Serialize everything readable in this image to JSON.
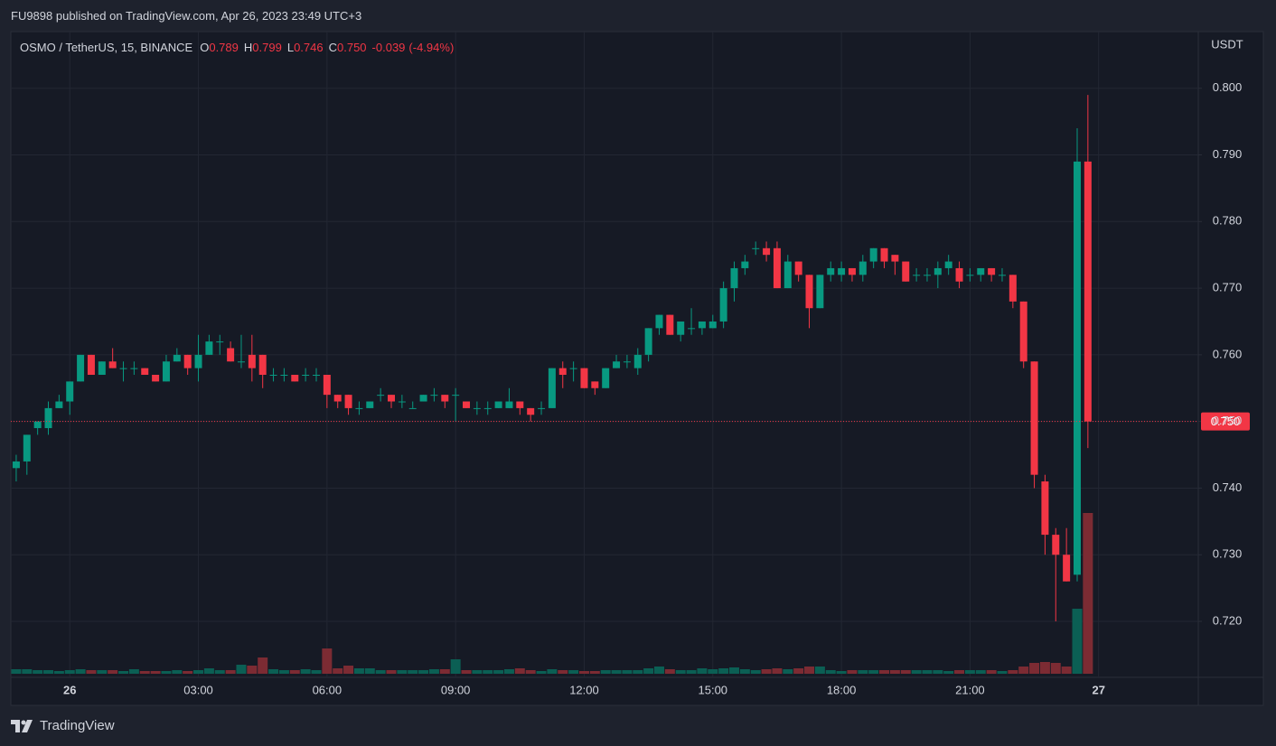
{
  "header": "FU9898 published on TradingView.com, Apr 26, 2023 23:49 UTC+3",
  "footer": "TradingView",
  "chart_data": {
    "type": "candlestick",
    "title": "OSMO / TetherUS, 15, BINANCE",
    "legend_items": [
      {
        "label": "O",
        "value": "0.789"
      },
      {
        "label": "H",
        "value": "0.799"
      },
      {
        "label": "L",
        "value": "0.746"
      },
      {
        "label": "C",
        "value": "0.750"
      }
    ],
    "change": "-0.039",
    "change_pct": "(-4.94%)",
    "y_axis_label": "USDT",
    "categories": [
      null,
      null,
      null,
      null,
      null,
      "26",
      null,
      null,
      null,
      null,
      null,
      null,
      null,
      null,
      null,
      null,
      null,
      "03:00",
      null,
      null,
      null,
      null,
      null,
      null,
      null,
      null,
      null,
      null,
      null,
      "06:00",
      null,
      null,
      null,
      null,
      null,
      null,
      null,
      null,
      null,
      null,
      null,
      "09:00",
      null,
      null,
      null,
      null,
      null,
      null,
      null,
      null,
      null,
      null,
      null,
      "12:00",
      null,
      null,
      null,
      null,
      null,
      null,
      null,
      null,
      null,
      null,
      null,
      "15:00",
      null,
      null,
      null,
      null,
      null,
      null,
      null,
      null,
      null,
      null,
      null,
      "18:00",
      null,
      null,
      null,
      null,
      null,
      null,
      null,
      null,
      null,
      null,
      null,
      "21:00",
      null,
      null,
      null,
      null,
      null,
      null,
      null,
      null,
      null,
      null,
      null,
      "27"
    ],
    "open": [
      0.743,
      0.744,
      0.749,
      0.749,
      0.752,
      0.753,
      0.756,
      0.76,
      0.757,
      0.759,
      0.758,
      0.758,
      0.758,
      0.757,
      0.756,
      0.759,
      0.76,
      0.758,
      0.76,
      0.762,
      0.761,
      0.759,
      0.76,
      0.76,
      0.757,
      0.757,
      0.757,
      0.757,
      0.757,
      0.757,
      0.754,
      0.754,
      0.752,
      0.752,
      0.754,
      0.754,
      0.753,
      0.752,
      0.753,
      0.754,
      0.754,
      0.754,
      0.753,
      0.752,
      0.752,
      0.752,
      0.752,
      0.753,
      0.752,
      0.752,
      0.752,
      0.758,
      0.758,
      0.758,
      0.756,
      0.755,
      0.758,
      0.759,
      0.758,
      0.76,
      0.764,
      0.766,
      0.763,
      0.764,
      0.764,
      0.764,
      0.765,
      0.77,
      0.773,
      0.776,
      0.776,
      0.776,
      0.77,
      0.774,
      0.772,
      0.767,
      0.772,
      0.772,
      0.773,
      0.772,
      0.774,
      0.776,
      0.775,
      0.774,
      0.772,
      0.772,
      0.772,
      0.773,
      0.773,
      0.772,
      0.772,
      0.773,
      0.772,
      0.772,
      0.768,
      0.759,
      0.741,
      0.733,
      0.73,
      0.727,
      0.789,
      null
    ],
    "high": [
      0.745,
      0.748,
      0.75,
      0.753,
      0.754,
      0.756,
      0.76,
      0.76,
      0.759,
      0.761,
      0.759,
      0.759,
      0.758,
      0.757,
      0.76,
      0.761,
      0.76,
      0.763,
      0.763,
      0.763,
      0.762,
      0.763,
      0.763,
      0.76,
      0.758,
      0.758,
      0.757,
      0.758,
      0.758,
      0.757,
      0.754,
      0.754,
      0.753,
      0.753,
      0.755,
      0.754,
      0.754,
      0.753,
      0.754,
      0.755,
      0.754,
      0.755,
      0.753,
      0.753,
      0.753,
      0.753,
      0.755,
      0.753,
      0.752,
      0.753,
      0.758,
      0.759,
      0.759,
      0.758,
      0.756,
      0.758,
      0.76,
      0.76,
      0.761,
      0.764,
      0.766,
      0.766,
      0.765,
      0.767,
      0.765,
      0.766,
      0.771,
      0.774,
      0.775,
      0.777,
      0.777,
      0.777,
      0.775,
      0.774,
      0.772,
      0.772,
      0.774,
      0.774,
      0.773,
      0.775,
      0.776,
      0.776,
      0.775,
      0.774,
      0.773,
      0.773,
      0.774,
      0.775,
      0.774,
      0.773,
      0.773,
      0.773,
      0.773,
      0.772,
      0.768,
      0.759,
      0.742,
      0.734,
      0.734,
      0.794,
      0.799,
      null
    ],
    "low": [
      0.741,
      0.742,
      0.748,
      0.748,
      0.752,
      0.751,
      0.756,
      0.757,
      0.757,
      0.758,
      0.756,
      0.757,
      0.757,
      0.756,
      0.756,
      0.759,
      0.757,
      0.756,
      0.76,
      0.76,
      0.759,
      0.758,
      0.756,
      0.755,
      0.756,
      0.756,
      0.756,
      0.756,
      0.756,
      0.752,
      0.752,
      0.751,
      0.751,
      0.752,
      0.753,
      0.752,
      0.752,
      0.752,
      0.753,
      0.753,
      0.752,
      0.75,
      0.752,
      0.751,
      0.751,
      0.752,
      0.752,
      0.751,
      0.75,
      0.751,
      0.752,
      0.755,
      0.756,
      0.755,
      0.754,
      0.755,
      0.758,
      0.758,
      0.757,
      0.759,
      0.763,
      0.763,
      0.762,
      0.763,
      0.763,
      0.764,
      0.764,
      0.768,
      0.772,
      0.775,
      0.774,
      0.77,
      0.77,
      0.771,
      0.764,
      0.767,
      0.771,
      0.771,
      0.771,
      0.771,
      0.773,
      0.773,
      0.772,
      0.771,
      0.771,
      0.771,
      0.77,
      0.772,
      0.77,
      0.771,
      0.771,
      0.771,
      0.771,
      0.767,
      0.758,
      0.74,
      0.73,
      0.72,
      0.726,
      0.726,
      0.746,
      null
    ],
    "close": [
      0.744,
      0.748,
      0.75,
      0.752,
      0.753,
      0.756,
      0.76,
      0.757,
      0.759,
      0.758,
      0.758,
      0.758,
      0.757,
      0.756,
      0.759,
      0.76,
      0.758,
      0.76,
      0.762,
      0.762,
      0.759,
      0.759,
      0.758,
      0.757,
      0.757,
      0.757,
      0.756,
      0.757,
      0.757,
      0.754,
      0.753,
      0.752,
      0.752,
      0.753,
      0.754,
      0.753,
      0.753,
      0.752,
      0.754,
      0.754,
      0.753,
      0.754,
      0.752,
      0.752,
      0.752,
      0.753,
      0.753,
      0.752,
      0.751,
      0.752,
      0.758,
      0.757,
      0.758,
      0.755,
      0.755,
      0.758,
      0.759,
      0.759,
      0.76,
      0.764,
      0.766,
      0.763,
      0.765,
      0.764,
      0.765,
      0.765,
      0.77,
      0.773,
      0.774,
      0.776,
      0.775,
      0.77,
      0.774,
      0.772,
      0.767,
      0.772,
      0.773,
      0.773,
      0.772,
      0.774,
      0.776,
      0.774,
      0.774,
      0.771,
      0.772,
      0.772,
      0.773,
      0.774,
      0.771,
      0.772,
      0.773,
      0.772,
      0.772,
      0.768,
      0.759,
      0.742,
      0.733,
      0.73,
      0.726,
      0.789,
      0.75,
      null
    ],
    "volume": [
      5,
      5,
      4,
      4,
      3,
      4,
      5,
      4,
      4,
      4,
      3,
      5,
      3,
      3,
      3,
      4,
      3,
      4,
      6,
      4,
      4,
      10,
      9,
      18,
      5,
      4,
      4,
      5,
      4,
      28,
      6,
      9,
      6,
      6,
      4,
      4,
      4,
      4,
      4,
      5,
      5,
      16,
      4,
      4,
      4,
      4,
      5,
      6,
      4,
      3,
      5,
      4,
      4,
      3,
      3,
      4,
      4,
      4,
      4,
      6,
      8,
      5,
      4,
      4,
      6,
      5,
      6,
      7,
      5,
      4,
      5,
      6,
      5,
      6,
      8,
      8,
      4,
      3,
      4,
      4,
      4,
      4,
      4,
      4,
      4,
      4,
      4,
      3,
      4,
      4,
      4,
      4,
      3,
      4,
      8,
      12,
      13,
      12,
      8,
      72,
      178,
      null
    ],
    "up_color": "#089981",
    "down_color": "#f23645",
    "volume_up_color": "#0b5f54",
    "volume_down_color": "#7c2b33",
    "grid": true,
    "ylim": [
      0.7116,
      0.8085
    ],
    "yticks": [
      {
        "value": 0.72,
        "label": "0.720"
      },
      {
        "value": 0.73,
        "label": "0.730"
      },
      {
        "value": 0.74,
        "label": "0.740"
      },
      {
        "value": 0.75,
        "label": "0.750"
      },
      {
        "value": 0.76,
        "label": "0.760"
      },
      {
        "value": 0.77,
        "label": "0.770"
      },
      {
        "value": 0.78,
        "label": "0.780"
      },
      {
        "value": 0.79,
        "label": "0.790"
      },
      {
        "value": 0.8,
        "label": "0.800"
      }
    ],
    "last_price": {
      "value": 0.75,
      "label": "0.750"
    }
  }
}
